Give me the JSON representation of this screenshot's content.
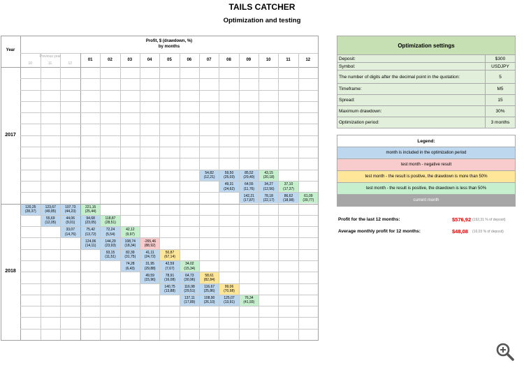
{
  "title": "TAILS CATCHER",
  "subtitle": "Optimization and testing",
  "table": {
    "year_header": "Year",
    "profit_header_line1": "Profit, $ (drawdown, %)",
    "profit_header_line2": "by months",
    "previous_year_label": "Previous year",
    "previous_months": [
      "10",
      "11",
      "12"
    ],
    "months": [
      "01",
      "02",
      "03",
      "04",
      "05",
      "06",
      "07",
      "08",
      "09",
      "10",
      "11",
      "12"
    ],
    "years": [
      "2017",
      "2018"
    ],
    "cells": [
      {
        "row": 9,
        "col": 9,
        "v": "54,82",
        "d": "(12,21)",
        "c": "blue"
      },
      {
        "row": 9,
        "col": 10,
        "v": "59,50",
        "d": "(25,03)",
        "c": "blue"
      },
      {
        "row": 9,
        "col": 11,
        "v": "85,52",
        "d": "(29,40)",
        "c": "blue"
      },
      {
        "row": 9,
        "col": 12,
        "v": "43,15",
        "d": "(20,18)",
        "c": "green"
      },
      {
        "row": 10,
        "col": 10,
        "v": "49,31",
        "d": "(24,62)",
        "c": "blue"
      },
      {
        "row": 10,
        "col": 11,
        "v": "64,55",
        "d": "(11,76)",
        "c": "blue"
      },
      {
        "row": 10,
        "col": 12,
        "v": "34,27",
        "d": "(12,56)",
        "c": "blue"
      },
      {
        "row": 10,
        "col": 13,
        "v": "37,10",
        "d": "(17,37)",
        "c": "green"
      },
      {
        "row": 11,
        "col": 11,
        "v": "142,21",
        "d": "(17,87)",
        "c": "blue"
      },
      {
        "row": 11,
        "col": 12,
        "v": "78,18",
        "d": "(22,17)",
        "c": "blue"
      },
      {
        "row": 11,
        "col": 13,
        "v": "86,62",
        "d": "(18,98)",
        "c": "blue"
      },
      {
        "row": 11,
        "col": 14,
        "v": "61,09",
        "d": "(39,77)",
        "c": "green"
      },
      {
        "row": 12,
        "col": 0,
        "v": "120,25",
        "d": "(28,37)",
        "c": "blue"
      },
      {
        "row": 12,
        "col": 1,
        "v": "123,67",
        "d": "(49,85)",
        "c": "blue"
      },
      {
        "row": 12,
        "col": 2,
        "v": "107,73",
        "d": "(44,23)",
        "c": "blue"
      },
      {
        "row": 12,
        "col": 3,
        "v": "221,15",
        "d": "(25,44)",
        "c": "green"
      },
      {
        "row": 13,
        "col": 1,
        "v": "55,69",
        "d": "(12,05)",
        "c": "blue"
      },
      {
        "row": 13,
        "col": 2,
        "v": "44,06",
        "d": "(9,01)",
        "c": "blue"
      },
      {
        "row": 13,
        "col": 3,
        "v": "94,68",
        "d": "(23,05)",
        "c": "blue"
      },
      {
        "row": 13,
        "col": 4,
        "v": "118,87",
        "d": "(28,51)",
        "c": "green"
      },
      {
        "row": 14,
        "col": 2,
        "v": "33,07",
        "d": "(14,76)",
        "c": "blue"
      },
      {
        "row": 14,
        "col": 3,
        "v": "75,42",
        "d": "(13,72)",
        "c": "blue"
      },
      {
        "row": 14,
        "col": 4,
        "v": "72,24",
        "d": "(5,54)",
        "c": "blue"
      },
      {
        "row": 14,
        "col": 5,
        "v": "42,12",
        "d": "(9,97)",
        "c": "green"
      },
      {
        "row": 15,
        "col": 3,
        "v": "124,06",
        "d": "(14,11)",
        "c": "blue"
      },
      {
        "row": 15,
        "col": 4,
        "v": "144,29",
        "d": "(23,93)",
        "c": "blue"
      },
      {
        "row": 15,
        "col": 5,
        "v": "108,74",
        "d": "(18,34)",
        "c": "blue"
      },
      {
        "row": 15,
        "col": 6,
        "v": "-265,46",
        "d": "(88,92)",
        "c": "red"
      },
      {
        "row": 16,
        "col": 4,
        "v": "93,15",
        "d": "(11,51)",
        "c": "blue"
      },
      {
        "row": 16,
        "col": 5,
        "v": "82,39",
        "d": "(31,75)",
        "c": "blue"
      },
      {
        "row": 16,
        "col": 6,
        "v": "41,11",
        "d": "(24,72)",
        "c": "blue"
      },
      {
        "row": 16,
        "col": 7,
        "v": "50,87",
        "d": "(67,14)",
        "c": "yellow"
      },
      {
        "row": 17,
        "col": 5,
        "v": "74,28",
        "d": "(6,43)",
        "c": "blue"
      },
      {
        "row": 17,
        "col": 6,
        "v": "31,95",
        "d": "(29,88)",
        "c": "blue"
      },
      {
        "row": 17,
        "col": 7,
        "v": "42,59",
        "d": "(7,67)",
        "c": "blue"
      },
      {
        "row": 17,
        "col": 8,
        "v": "34,02",
        "d": "(15,34)",
        "c": "green"
      },
      {
        "row": 18,
        "col": 6,
        "v": "49,59",
        "d": "(15,96)",
        "c": "blue"
      },
      {
        "row": 18,
        "col": 7,
        "v": "78,91",
        "d": "(16,08)",
        "c": "blue"
      },
      {
        "row": 18,
        "col": 8,
        "v": "64,73",
        "d": "(30,96)",
        "c": "blue"
      },
      {
        "row": 18,
        "col": 9,
        "v": "58,61",
        "d": "(82,84)",
        "c": "yellow"
      },
      {
        "row": 19,
        "col": 7,
        "v": "140,75",
        "d": "(13,88)",
        "c": "blue"
      },
      {
        "row": 19,
        "col": 8,
        "v": "116,98",
        "d": "(29,51)",
        "c": "blue"
      },
      {
        "row": 19,
        "col": 9,
        "v": "116,67",
        "d": "(25,86)",
        "c": "blue"
      },
      {
        "row": 19,
        "col": 10,
        "v": "99,06",
        "d": "(70,98)",
        "c": "yellow"
      },
      {
        "row": 20,
        "col": 8,
        "v": "137,11",
        "d": "(17,89)",
        "c": "blue"
      },
      {
        "row": 20,
        "col": 9,
        "v": "108,90",
        "d": "(26,10)",
        "c": "blue"
      },
      {
        "row": 20,
        "col": 10,
        "v": "125,07",
        "d": "(13,91)",
        "c": "blue"
      },
      {
        "row": 20,
        "col": 11,
        "v": "76,34",
        "d": "(41,93)",
        "c": "green"
      }
    ]
  },
  "colors": {
    "blue": "#bdd7ee",
    "red": "#f8cbcc",
    "yellow": "#ffe699",
    "green": "#c6efce",
    "gray": "#a6a6a6",
    "settings_header": "#c6e0b4",
    "settings_row": "#e2efda",
    "value_red": "#e00000"
  },
  "settings": {
    "title": "Optimization settings",
    "rows": [
      {
        "label": "Deposit:",
        "value": "$300"
      },
      {
        "label": "Symbol:",
        "value": "USDJPY"
      },
      {
        "label": "The number of digits after the decimal point in the quotation:",
        "value": "5"
      },
      {
        "label": "Timeframe:",
        "value": "M5"
      },
      {
        "label": "Spread:",
        "value": "15"
      },
      {
        "label": "Maximum drawdown:",
        "value": "30%"
      },
      {
        "label": "Optimization period:",
        "value": "3 months"
      }
    ]
  },
  "legend": {
    "title": "Legend:",
    "items": [
      {
        "label": "month is included in the optimization period",
        "c": "blue"
      },
      {
        "label": "test month - negative result",
        "c": "red"
      },
      {
        "label": "test month - the result is positive, the drawdown is more than 50%",
        "c": "yellow"
      },
      {
        "label": "test month - the result is positive, the drawdown is less than 50%",
        "c": "green"
      },
      {
        "label": "current month",
        "c": "gray"
      }
    ]
  },
  "summary": {
    "profit_label": "Profit for the last 12 months:",
    "profit_value": "$576,92",
    "profit_note": "(192,31 % of deposit)",
    "avg_label": "Average monthly profit for 12 months:",
    "avg_value": "$48,08",
    "avg_note": "(16,03 % of deposit)"
  },
  "zoom_icon": "zoom-in-icon"
}
